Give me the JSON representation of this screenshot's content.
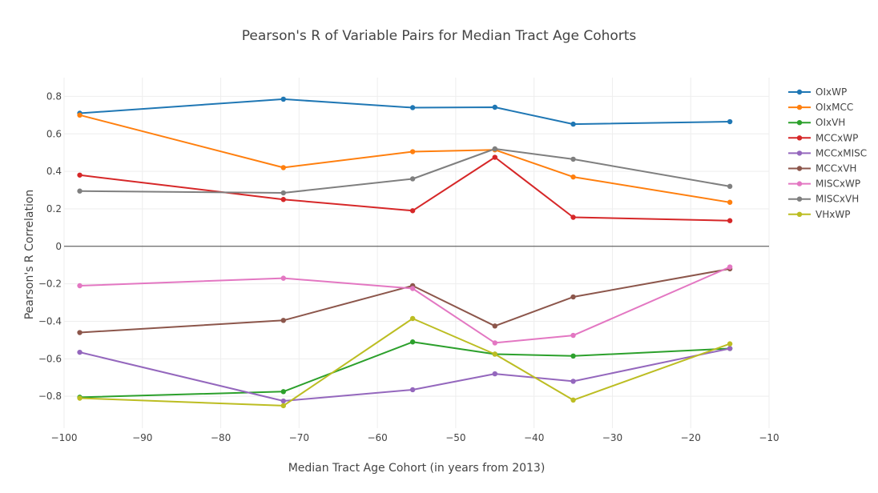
{
  "chart_data": {
    "type": "line",
    "title": "Pearson's R of Variable Pairs for Median Tract Age Cohorts",
    "xlabel": "Median Tract Age Cohort (in years from 2013)",
    "ylabel": "Pearson's R Correlation",
    "xlim": [
      -100,
      -10
    ],
    "ylim": [
      -0.97,
      0.9
    ],
    "grid": true,
    "legend_position": "right",
    "x": [
      -98,
      -72,
      -55.5,
      -45,
      -35,
      -15
    ],
    "x_ticks": [
      -100,
      -90,
      -80,
      -70,
      -60,
      -50,
      -40,
      -30,
      -20,
      -10
    ],
    "x_tick_labels": [
      "−100",
      "−90",
      "−80",
      "−70",
      "−60",
      "−50",
      "−40",
      "−30",
      "−20",
      "−10"
    ],
    "y_ticks": [
      0.8,
      0.6,
      0.4,
      0.2,
      0,
      -0.2,
      -0.4,
      -0.6,
      -0.8
    ],
    "y_tick_labels": [
      "0.8",
      "0.6",
      "0.4",
      "0.2",
      "0",
      "−0.2",
      "−0.4",
      "−0.6",
      "−0.8"
    ],
    "series": [
      {
        "name": "OIxWP",
        "color": "#1f77b4",
        "values": [
          0.71,
          0.785,
          0.74,
          0.742,
          0.652,
          0.665
        ]
      },
      {
        "name": "OIxMCC",
        "color": "#ff7f0e",
        "values": [
          0.7,
          0.42,
          0.505,
          0.515,
          0.37,
          0.235
        ]
      },
      {
        "name": "OIxVH",
        "color": "#2ca02c",
        "values": [
          -0.805,
          -0.775,
          -0.51,
          -0.575,
          -0.585,
          -0.545
        ]
      },
      {
        "name": "MCCxWP",
        "color": "#d62728",
        "values": [
          0.38,
          0.25,
          0.19,
          0.475,
          0.155,
          0.137
        ]
      },
      {
        "name": "MCCxMISC",
        "color": "#9467bd",
        "values": [
          -0.565,
          -0.825,
          -0.765,
          -0.68,
          -0.72,
          -0.545
        ]
      },
      {
        "name": "MCCxVH",
        "color": "#8c564b",
        "values": [
          -0.46,
          -0.395,
          -0.21,
          -0.425,
          -0.27,
          -0.12
        ]
      },
      {
        "name": "MISCxWP",
        "color": "#e377c2",
        "values": [
          -0.21,
          -0.17,
          -0.225,
          -0.515,
          -0.475,
          -0.11
        ]
      },
      {
        "name": "MISCxVH",
        "color": "#7f7f7f",
        "values": [
          0.295,
          0.285,
          0.36,
          0.52,
          0.465,
          0.32
        ]
      },
      {
        "name": "VHxWP",
        "color": "#bcbd22",
        "values": [
          -0.81,
          -0.85,
          -0.385,
          -0.575,
          -0.82,
          -0.52
        ]
      }
    ]
  }
}
